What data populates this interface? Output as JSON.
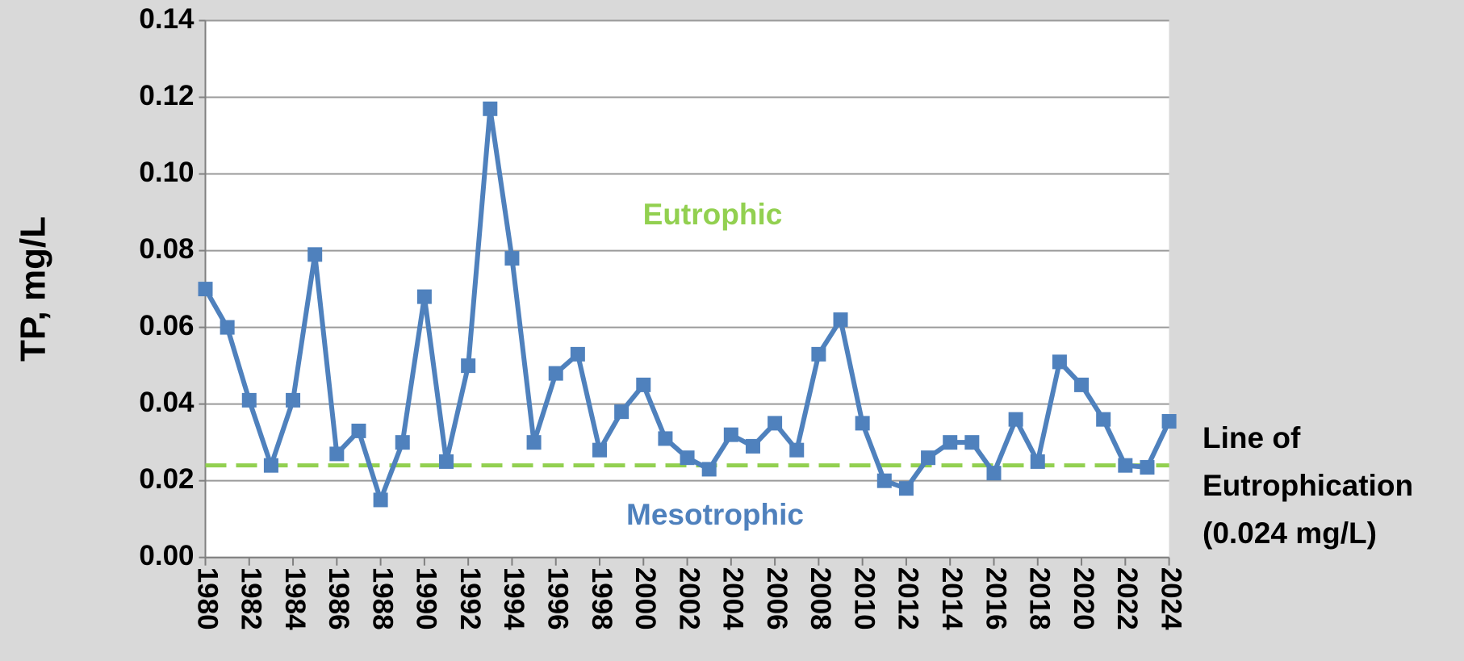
{
  "chart_data": {
    "type": "line",
    "y_label": "TP, mg/L",
    "x": [
      1980,
      1981,
      1982,
      1983,
      1984,
      1985,
      1986,
      1987,
      1988,
      1989,
      1990,
      1991,
      1992,
      1993,
      1994,
      1995,
      1996,
      1997,
      1998,
      1999,
      2000,
      2001,
      2002,
      2003,
      2004,
      2005,
      2006,
      2007,
      2008,
      2009,
      2010,
      2011,
      2012,
      2013,
      2014,
      2015,
      2016,
      2017,
      2018,
      2019,
      2020,
      2021,
      2022,
      2023,
      2024
    ],
    "series": [
      {
        "color": "#4f81bd",
        "values": [
          0.07,
          0.06,
          0.041,
          0.024,
          0.041,
          0.079,
          0.027,
          0.033,
          0.015,
          0.03,
          0.068,
          0.025,
          0.05,
          0.117,
          0.078,
          0.03,
          0.048,
          0.053,
          0.028,
          0.038,
          0.045,
          0.031,
          0.026,
          0.023,
          0.032,
          0.029,
          0.035,
          0.028,
          0.053,
          0.062,
          0.035,
          0.02,
          0.018,
          0.026,
          0.03,
          0.03,
          0.022,
          0.036,
          0.025,
          0.051,
          0.045,
          0.036,
          0.024,
          0.0235,
          0.0355
        ]
      }
    ],
    "threshold": {
      "value": 0.024,
      "color": "#92d050",
      "label": [
        "Line of",
        "Eutrophication",
        "(0.024 mg/L)"
      ]
    },
    "annotations": [
      {
        "text": "Eutrophic",
        "color": "#92d050"
      },
      {
        "text": "Mesotrophic",
        "color": "#4f81bd"
      }
    ],
    "xlim": [
      1980,
      2024
    ],
    "xticks": [
      1980,
      1982,
      1984,
      1986,
      1988,
      1990,
      1992,
      1994,
      1996,
      1998,
      2000,
      2002,
      2004,
      2006,
      2008,
      2010,
      2012,
      2014,
      2016,
      2018,
      2020,
      2022,
      2024
    ],
    "ylim": [
      0,
      0.14
    ],
    "yticks": [
      {
        "value": 0,
        "label": "0.00"
      },
      {
        "value": 0.02,
        "label": "0.02"
      },
      {
        "value": 0.04,
        "label": "0.04"
      },
      {
        "value": 0.06,
        "label": "0.06"
      },
      {
        "value": 0.08,
        "label": "0.08"
      },
      {
        "value": 0.1,
        "label": "0.10"
      },
      {
        "value": 0.12,
        "label": "0.12"
      },
      {
        "value": 0.14,
        "label": "0.14"
      }
    ],
    "grid": true
  }
}
